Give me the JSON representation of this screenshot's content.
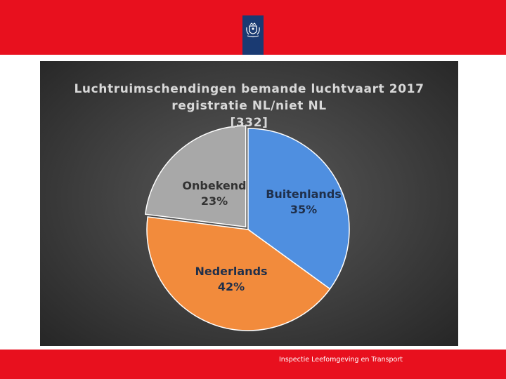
{
  "chart_data": {
    "type": "pie",
    "title_lines": [
      "Luchtruimschendingen bemande luchtvaart 2017",
      "registratie NL/niet NL",
      "[332]"
    ],
    "slices": [
      {
        "name": "Buitenlands",
        "label": "35%",
        "value": 35,
        "color": "#4f8fe0"
      },
      {
        "name": "Nederlands",
        "label": "42%",
        "value": 42,
        "color": "#f28b3c"
      },
      {
        "name": "Onbekend",
        "label": "23%",
        "value": 23,
        "color": "#a8a8a8"
      }
    ]
  },
  "footer": {
    "text": "Inspectie Leefomgeving en Transport"
  },
  "colors": {
    "brand_red": "#e8101e",
    "logo_blue": "#1a3a72"
  },
  "logo": {
    "icon": "dutch-coat-of-arms-icon"
  }
}
